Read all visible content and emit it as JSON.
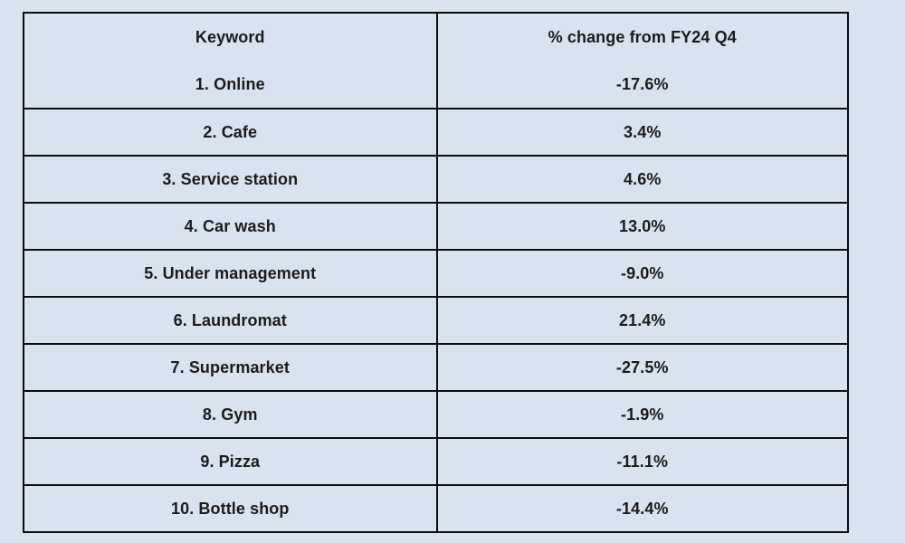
{
  "chart_data": {
    "type": "table",
    "columns": [
      "Keyword",
      "% change from FY24 Q4"
    ],
    "rows": [
      [
        "1. Online",
        "-17.6%"
      ],
      [
        "2. Cafe",
        "3.4%"
      ],
      [
        "3. Service station",
        "4.6%"
      ],
      [
        "4. Car wash",
        "13.0%"
      ],
      [
        "5. Under management",
        "-9.0%"
      ],
      [
        "6. Laundromat",
        "21.4%"
      ],
      [
        "7. Supermarket",
        "-27.5%"
      ],
      [
        "8. Gym",
        "-1.9%"
      ],
      [
        "9. Pizza",
        "-11.1%"
      ],
      [
        "10. Bottle shop",
        "-14.4%"
      ]
    ],
    "numeric_values": {
      "categories": [
        "Online",
        "Cafe",
        "Service station",
        "Car wash",
        "Under management",
        "Laundromat",
        "Supermarket",
        "Gym",
        "Pizza",
        "Bottle shop"
      ],
      "pct_change_from_fy24_q4": [
        -17.6,
        3.4,
        4.6,
        13.0,
        -9.0,
        21.4,
        -27.5,
        -1.9,
        -11.1,
        -14.4
      ]
    }
  },
  "colors": {
    "background": "#d9e3f0",
    "border": "#0d0d0d",
    "text": "#1b1b1b"
  }
}
